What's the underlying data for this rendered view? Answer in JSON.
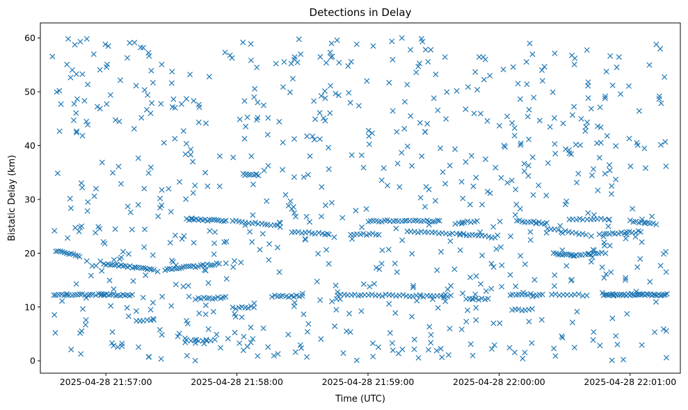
{
  "chart_data": {
    "type": "scatter",
    "title": "Detections in Delay",
    "xlabel": "Time (UTC)",
    "ylabel": "Bistatic Delay (km)",
    "marker": "x",
    "color": "#1f77b4",
    "grid": false,
    "legend": "none",
    "x_range": [
      "2025-04-28 21:56:30",
      "2025-04-28 22:01:23"
    ],
    "ylim": [
      -2.3,
      62.8
    ],
    "x_ticks": [
      "2025-04-28 21:57:00",
      "2025-04-28 21:58:00",
      "2025-04-28 21:59:00",
      "2025-04-28 22:00:00",
      "2025-04-28 22:01:00"
    ],
    "y_ticks": [
      0,
      10,
      20,
      30,
      40,
      50,
      60
    ],
    "t_start": "2025-04-28 21:56:35",
    "t_end": "2025-04-28 22:01:17",
    "tracks": [
      {
        "start": "2025-04-28 21:56:36",
        "end": "2025-04-28 21:56:59",
        "y0": 12.3,
        "y1": 12.3,
        "n": 20
      },
      {
        "start": "2025-04-28 21:56:37",
        "end": "2025-04-28 21:56:48",
        "y0": 20.5,
        "y1": 19.5,
        "n": 12
      },
      {
        "start": "2025-04-28 21:56:59",
        "end": "2025-04-28 21:57:22",
        "y0": 18.0,
        "y1": 17.0,
        "n": 24
      },
      {
        "start": "2025-04-28 21:56:58",
        "end": "2025-04-28 21:57:12",
        "y0": 12.3,
        "y1": 12.2,
        "n": 14
      },
      {
        "start": "2025-04-28 21:57:14",
        "end": "2025-04-28 21:57:22",
        "y0": 7.5,
        "y1": 7.5,
        "n": 6
      },
      {
        "start": "2025-04-28 21:57:27",
        "end": "2025-04-28 21:57:52",
        "y0": 17.0,
        "y1": 18.0,
        "n": 24
      },
      {
        "start": "2025-04-28 21:57:37",
        "end": "2025-04-28 21:57:55",
        "y0": 26.3,
        "y1": 26.0,
        "n": 18
      },
      {
        "start": "2025-04-28 21:57:41",
        "end": "2025-04-28 21:57:55",
        "y0": 11.5,
        "y1": 11.8,
        "n": 12
      },
      {
        "start": "2025-04-28 21:57:37",
        "end": "2025-04-28 21:57:50",
        "y0": 3.8,
        "y1": 3.8,
        "n": 8
      },
      {
        "start": "2025-04-28 21:57:58",
        "end": "2025-04-28 21:58:20",
        "y0": 26.0,
        "y1": 25.0,
        "n": 16
      },
      {
        "start": "2025-04-28 21:58:03",
        "end": "2025-04-28 21:58:10",
        "y0": 34.8,
        "y1": 34.5,
        "n": 7
      },
      {
        "start": "2025-04-28 21:57:58",
        "end": "2025-04-28 21:58:08",
        "y0": 9.8,
        "y1": 10.0,
        "n": 8
      },
      {
        "start": "2025-04-28 21:58:25",
        "end": "2025-04-28 21:58:42",
        "y0": 24.0,
        "y1": 23.5,
        "n": 12
      },
      {
        "start": "2025-04-28 21:58:16",
        "end": "2025-04-28 21:58:30",
        "y0": 12.0,
        "y1": 12.0,
        "n": 12
      },
      {
        "start": "2025-04-28 21:58:52",
        "end": "2025-04-28 21:59:05",
        "y0": 23.5,
        "y1": 23.5,
        "n": 10
      },
      {
        "start": "2025-04-28 21:58:46",
        "end": "2025-04-28 21:59:38",
        "y0": 12.3,
        "y1": 12.0,
        "n": 34
      },
      {
        "start": "2025-04-28 21:59:00",
        "end": "2025-04-28 21:59:32",
        "y0": 26.0,
        "y1": 26.0,
        "n": 26
      },
      {
        "start": "2025-04-28 21:59:18",
        "end": "2025-04-28 21:59:42",
        "y0": 24.0,
        "y1": 23.5,
        "n": 16
      },
      {
        "start": "2025-04-28 21:59:42",
        "end": "2025-04-28 21:59:58",
        "y0": 23.5,
        "y1": 23.0,
        "n": 12
      },
      {
        "start": "2025-04-28 21:59:40",
        "end": "2025-04-28 21:59:50",
        "y0": 25.5,
        "y1": 26.0,
        "n": 8
      },
      {
        "start": "2025-04-28 21:59:45",
        "end": "2025-04-28 21:59:55",
        "y0": 11.5,
        "y1": 11.5,
        "n": 8
      },
      {
        "start": "2025-04-28 22:00:08",
        "end": "2025-04-28 22:00:22",
        "y0": 26.0,
        "y1": 25.5,
        "n": 12
      },
      {
        "start": "2025-04-28 22:00:05",
        "end": "2025-04-28 22:00:20",
        "y0": 12.3,
        "y1": 12.3,
        "n": 12
      },
      {
        "start": "2025-04-28 22:00:06",
        "end": "2025-04-28 22:00:15",
        "y0": 9.5,
        "y1": 9.5,
        "n": 7
      },
      {
        "start": "2025-04-28 22:00:22",
        "end": "2025-04-28 22:00:40",
        "y0": 24.5,
        "y1": 23.5,
        "n": 12
      },
      {
        "start": "2025-04-28 22:00:24",
        "end": "2025-04-28 22:00:40",
        "y0": 12.3,
        "y1": 12.2,
        "n": 10
      },
      {
        "start": "2025-04-28 22:00:25",
        "end": "2025-04-28 22:00:34",
        "y0": 20.0,
        "y1": 19.5,
        "n": 10
      },
      {
        "start": "2025-04-28 22:00:33",
        "end": "2025-04-28 22:00:47",
        "y0": 19.5,
        "y1": 20.0,
        "n": 12
      },
      {
        "start": "2025-04-28 22:00:32",
        "end": "2025-04-28 22:00:50",
        "y0": 26.3,
        "y1": 26.3,
        "n": 12
      },
      {
        "start": "2025-04-28 22:00:48",
        "end": "2025-04-28 22:01:17",
        "y0": 12.3,
        "y1": 12.3,
        "n": 38
      },
      {
        "start": "2025-04-28 22:00:48",
        "end": "2025-04-28 22:01:05",
        "y0": 23.5,
        "y1": 24.0,
        "n": 14
      },
      {
        "start": "2025-04-28 22:01:00",
        "end": "2025-04-28 22:01:12",
        "y0": 26.0,
        "y1": 25.5,
        "n": 10
      }
    ],
    "clutter_count": 760,
    "clutter_ylim": [
      0,
      60
    ]
  }
}
